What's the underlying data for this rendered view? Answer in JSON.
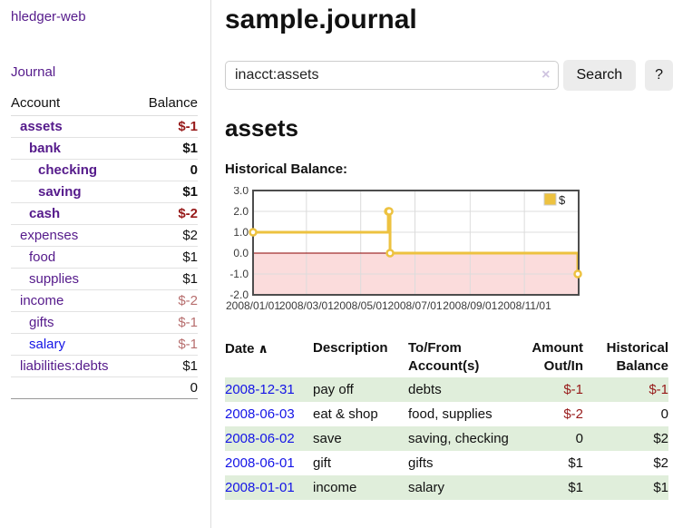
{
  "sidebar": {
    "brand": "hledger-web",
    "journal_link": "Journal",
    "table": {
      "account_header": "Account",
      "balance_header": "Balance",
      "rows": [
        {
          "name": "assets",
          "level": 1,
          "bold": true,
          "link": "purple",
          "balance": "$-1",
          "neg": "strong"
        },
        {
          "name": "bank",
          "level": 2,
          "bold": true,
          "link": "purple",
          "balance": "$1",
          "neg": "none"
        },
        {
          "name": "checking",
          "level": 3,
          "bold": true,
          "link": "purple",
          "balance": "0",
          "neg": "none"
        },
        {
          "name": "saving",
          "level": 3,
          "bold": true,
          "link": "purple",
          "balance": "$1",
          "neg": "none"
        },
        {
          "name": "cash",
          "level": 2,
          "bold": true,
          "link": "purple",
          "balance": "$-2",
          "neg": "strong"
        },
        {
          "name": "expenses",
          "level": 1,
          "bold": false,
          "link": "purple",
          "balance": "$2",
          "neg": "none"
        },
        {
          "name": "food",
          "level": 2,
          "bold": false,
          "link": "purple",
          "balance": "$1",
          "neg": "none"
        },
        {
          "name": "supplies",
          "level": 2,
          "bold": false,
          "link": "purple",
          "balance": "$1",
          "neg": "none"
        },
        {
          "name": "income",
          "level": 1,
          "bold": false,
          "link": "purple",
          "balance": "$-2",
          "neg": "muted"
        },
        {
          "name": "gifts",
          "level": 2,
          "bold": false,
          "link": "purple",
          "balance": "$-1",
          "neg": "muted"
        },
        {
          "name": "salary",
          "level": 2,
          "bold": false,
          "link": "blue",
          "balance": "$-1",
          "neg": "muted"
        },
        {
          "name": "liabilities:debts",
          "level": 1,
          "bold": false,
          "link": "purple",
          "balance": "$1",
          "neg": "none"
        }
      ],
      "total": "0"
    }
  },
  "header": {
    "title": "sample.journal"
  },
  "search": {
    "query": "inacct:assets",
    "clear_icon": "×",
    "button_label": "Search",
    "help_label": "?"
  },
  "account_page": {
    "heading": "assets",
    "chart_label": "Historical Balance:"
  },
  "chart_data": {
    "type": "line",
    "step": true,
    "series": [
      {
        "name": "$",
        "color": "#edc240",
        "points": [
          [
            "2008-01-01",
            1
          ],
          [
            "2008-06-01",
            2
          ],
          [
            "2008-06-02",
            2
          ],
          [
            "2008-06-03",
            0
          ],
          [
            "2008-12-31",
            -1
          ]
        ]
      }
    ],
    "x_range": [
      "2008-01-01",
      "2009-01-01"
    ],
    "x_ticks": [
      "2008/01/01",
      "2008/03/01",
      "2008/05/01",
      "2008/07/01",
      "2008/09/01",
      "2008/11/01"
    ],
    "y_ticks": [
      "3.0",
      "2.0",
      "1.0",
      "0.0",
      "-1.0",
      "-2.0"
    ],
    "ylim": [
      -2,
      3
    ],
    "legend": {
      "label": "$",
      "position": "top-right"
    },
    "grid": true,
    "negative_fill": "#fbdcdc",
    "zero_line_color": "#8b0000",
    "border_color": "#4d4d4d",
    "grid_color": "#dcdcdc"
  },
  "register": {
    "headers": {
      "date": "Date",
      "sort_icon": "∧",
      "description": "Description",
      "tofrom_line1": "To/From",
      "tofrom_line2": "Account(s)",
      "amount_line1": "Amount",
      "amount_line2": "Out/In",
      "balance_line1": "Historical",
      "balance_line2": "Balance"
    },
    "rows": [
      {
        "date": "2008-12-31",
        "description": "pay off",
        "accounts": "debts",
        "amount": "$-1",
        "amount_neg": true,
        "balance": "$-1",
        "balance_neg": true
      },
      {
        "date": "2008-06-03",
        "description": "eat & shop",
        "accounts": "food, supplies",
        "amount": "$-2",
        "amount_neg": true,
        "balance": "0",
        "balance_neg": false
      },
      {
        "date": "2008-06-02",
        "description": "save",
        "accounts": "saving, checking",
        "amount": "0",
        "amount_neg": false,
        "balance": "$2",
        "balance_neg": false
      },
      {
        "date": "2008-06-01",
        "description": "gift",
        "accounts": "gifts",
        "amount": "$1",
        "amount_neg": false,
        "balance": "$2",
        "balance_neg": false
      },
      {
        "date": "2008-01-01",
        "description": "income",
        "accounts": "salary",
        "amount": "$1",
        "amount_neg": false,
        "balance": "$1",
        "balance_neg": false
      }
    ]
  },
  "colors": {
    "link_purple": "#551a8b",
    "link_blue": "#1414e6",
    "negative_strong": "#971a1a",
    "negative_muted": "#b76e6e",
    "row_green": "#e0eedb",
    "chart_line": "#edc240"
  }
}
